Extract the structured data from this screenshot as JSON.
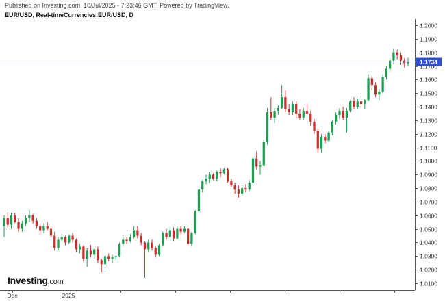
{
  "header": {
    "publisher_line": "Published on Investing.com, 10/Jul/2025 - 7:23:46 GMT, Powered by TradingView.",
    "instrument_line": "EUR/USD, Real-timeCurrencies:EUR/USD, D"
  },
  "logo": {
    "main": "Investing",
    "suffix": ".com"
  },
  "colors": {
    "up": "#1f9d55",
    "down": "#c8302d",
    "price_line": "#b8bde6",
    "price_tag": "#2f4fd4",
    "grid": "#e4e4e4"
  },
  "chart_data": {
    "type": "candlestick",
    "title": "",
    "instrument": "EUR/USD",
    "timeframe": "D",
    "y_axis": {
      "range": [
        1.0,
        1.21
      ],
      "ticks": [
        "1.2000",
        "1.1900",
        "1.1800",
        "1.1700",
        "1.1600",
        "1.1500",
        "1.1400",
        "1.1300",
        "1.1200",
        "1.1100",
        "1.1000",
        "1.0900",
        "1.0800",
        "1.0700",
        "1.0600",
        "1.0500",
        "1.0400",
        "1.0300",
        "1.0200",
        "1.0100"
      ]
    },
    "x_axis": {
      "labels": [
        "Dec",
        "2025"
      ]
    },
    "current_price": "1.1734",
    "candles": [
      [
        1.052,
        1.06,
        1.044,
        1.058
      ],
      [
        1.058,
        1.062,
        1.051,
        1.053
      ],
      [
        1.053,
        1.062,
        1.05,
        1.06
      ],
      [
        1.06,
        1.062,
        1.054,
        1.055
      ],
      [
        1.055,
        1.058,
        1.048,
        1.05
      ],
      [
        1.05,
        1.056,
        1.048,
        1.054
      ],
      [
        1.054,
        1.06,
        1.052,
        1.058
      ],
      [
        1.058,
        1.064,
        1.055,
        1.06
      ],
      [
        1.06,
        1.061,
        1.054,
        1.056
      ],
      [
        1.056,
        1.058,
        1.05,
        1.052
      ],
      [
        1.052,
        1.054,
        1.046,
        1.049
      ],
      [
        1.049,
        1.054,
        1.047,
        1.052
      ],
      [
        1.052,
        1.055,
        1.049,
        1.05
      ],
      [
        1.05,
        1.052,
        1.044,
        1.045
      ],
      [
        1.045,
        1.048,
        1.034,
        1.036
      ],
      [
        1.036,
        1.044,
        1.034,
        1.042
      ],
      [
        1.042,
        1.046,
        1.04,
        1.044
      ],
      [
        1.044,
        1.045,
        1.038,
        1.04
      ],
      [
        1.04,
        1.046,
        1.039,
        1.045
      ],
      [
        1.045,
        1.047,
        1.04,
        1.042
      ],
      [
        1.042,
        1.043,
        1.033,
        1.035
      ],
      [
        1.035,
        1.039,
        1.032,
        1.037
      ],
      [
        1.037,
        1.038,
        1.026,
        1.028
      ],
      [
        1.028,
        1.036,
        1.022,
        1.034
      ],
      [
        1.034,
        1.038,
        1.029,
        1.031
      ],
      [
        1.031,
        1.036,
        1.028,
        1.035
      ],
      [
        1.035,
        1.037,
        1.025,
        1.027
      ],
      [
        1.027,
        1.028,
        1.018,
        1.024
      ],
      [
        1.024,
        1.032,
        1.02,
        1.03
      ],
      [
        1.03,
        1.032,
        1.026,
        1.028
      ],
      [
        1.028,
        1.031,
        1.025,
        1.029
      ],
      [
        1.029,
        1.031,
        1.027,
        1.03
      ],
      [
        1.03,
        1.04,
        1.029,
        1.039
      ],
      [
        1.039,
        1.044,
        1.037,
        1.042
      ],
      [
        1.042,
        1.044,
        1.039,
        1.041
      ],
      [
        1.041,
        1.046,
        1.04,
        1.044
      ],
      [
        1.044,
        1.052,
        1.043,
        1.049
      ],
      [
        1.049,
        1.052,
        1.043,
        1.045
      ],
      [
        1.045,
        1.047,
        1.038,
        1.04
      ],
      [
        1.04,
        1.041,
        1.014,
        1.035
      ],
      [
        1.035,
        1.042,
        1.033,
        1.04
      ],
      [
        1.04,
        1.042,
        1.034,
        1.036
      ],
      [
        1.036,
        1.037,
        1.029,
        1.031
      ],
      [
        1.031,
        1.039,
        1.03,
        1.038
      ],
      [
        1.038,
        1.048,
        1.037,
        1.047
      ],
      [
        1.047,
        1.05,
        1.042,
        1.044
      ],
      [
        1.044,
        1.051,
        1.043,
        1.049
      ],
      [
        1.049,
        1.051,
        1.041,
        1.043
      ],
      [
        1.043,
        1.052,
        1.042,
        1.05
      ],
      [
        1.05,
        1.052,
        1.046,
        1.048
      ],
      [
        1.048,
        1.052,
        1.047,
        1.05
      ],
      [
        1.05,
        1.051,
        1.038,
        1.039
      ],
      [
        1.039,
        1.048,
        1.037,
        1.047
      ],
      [
        1.047,
        1.064,
        1.046,
        1.063
      ],
      [
        1.063,
        1.081,
        1.062,
        1.079
      ],
      [
        1.079,
        1.086,
        1.077,
        1.085
      ],
      [
        1.085,
        1.09,
        1.083,
        1.087
      ],
      [
        1.087,
        1.092,
        1.084,
        1.09
      ],
      [
        1.09,
        1.091,
        1.086,
        1.087
      ],
      [
        1.087,
        1.093,
        1.085,
        1.092
      ],
      [
        1.092,
        1.095,
        1.088,
        1.091
      ],
      [
        1.091,
        1.095,
        1.09,
        1.094
      ],
      [
        1.094,
        1.095,
        1.084,
        1.085
      ],
      [
        1.085,
        1.087,
        1.081,
        1.082
      ],
      [
        1.082,
        1.084,
        1.076,
        1.079
      ],
      [
        1.079,
        1.082,
        1.073,
        1.076
      ],
      [
        1.076,
        1.082,
        1.074,
        1.08
      ],
      [
        1.08,
        1.083,
        1.077,
        1.079
      ],
      [
        1.079,
        1.086,
        1.078,
        1.084
      ],
      [
        1.084,
        1.104,
        1.082,
        1.102
      ],
      [
        1.102,
        1.107,
        1.094,
        1.096
      ],
      [
        1.096,
        1.1,
        1.09,
        1.097
      ],
      [
        1.097,
        1.116,
        1.096,
        1.114
      ],
      [
        1.114,
        1.139,
        1.112,
        1.136
      ],
      [
        1.136,
        1.147,
        1.13,
        1.132
      ],
      [
        1.132,
        1.139,
        1.128,
        1.137
      ],
      [
        1.137,
        1.141,
        1.134,
        1.139
      ],
      [
        1.139,
        1.156,
        1.138,
        1.147
      ],
      [
        1.147,
        1.152,
        1.136,
        1.138
      ],
      [
        1.138,
        1.142,
        1.134,
        1.136
      ],
      [
        1.136,
        1.144,
        1.134,
        1.142
      ],
      [
        1.142,
        1.144,
        1.132,
        1.135
      ],
      [
        1.135,
        1.138,
        1.13,
        1.132
      ],
      [
        1.132,
        1.139,
        1.13,
        1.137
      ],
      [
        1.137,
        1.142,
        1.134,
        1.135
      ],
      [
        1.135,
        1.137,
        1.126,
        1.129
      ],
      [
        1.129,
        1.131,
        1.12,
        1.122
      ],
      [
        1.122,
        1.124,
        1.106,
        1.109
      ],
      [
        1.109,
        1.12,
        1.106,
        1.118
      ],
      [
        1.118,
        1.12,
        1.113,
        1.115
      ],
      [
        1.115,
        1.122,
        1.114,
        1.121
      ],
      [
        1.121,
        1.13,
        1.119,
        1.129
      ],
      [
        1.129,
        1.136,
        1.127,
        1.134
      ],
      [
        1.134,
        1.139,
        1.131,
        1.137
      ],
      [
        1.137,
        1.14,
        1.13,
        1.132
      ],
      [
        1.132,
        1.139,
        1.121,
        1.137
      ],
      [
        1.137,
        1.145,
        1.136,
        1.144
      ],
      [
        1.144,
        1.147,
        1.138,
        1.14
      ],
      [
        1.14,
        1.146,
        1.138,
        1.144
      ],
      [
        1.144,
        1.148,
        1.14,
        1.142
      ],
      [
        1.142,
        1.146,
        1.138,
        1.145
      ],
      [
        1.145,
        1.164,
        1.144,
        1.161
      ],
      [
        1.161,
        1.163,
        1.152,
        1.156
      ],
      [
        1.156,
        1.158,
        1.147,
        1.149
      ],
      [
        1.149,
        1.153,
        1.145,
        1.151
      ],
      [
        1.151,
        1.164,
        1.15,
        1.162
      ],
      [
        1.162,
        1.17,
        1.16,
        1.168
      ],
      [
        1.168,
        1.176,
        1.166,
        1.174
      ],
      [
        1.174,
        1.183,
        1.172,
        1.18
      ],
      [
        1.18,
        1.182,
        1.175,
        1.178
      ],
      [
        1.178,
        1.18,
        1.171,
        1.174
      ],
      [
        1.174,
        1.176,
        1.169,
        1.172
      ],
      [
        1.172,
        1.176,
        1.17,
        1.1734
      ]
    ]
  }
}
